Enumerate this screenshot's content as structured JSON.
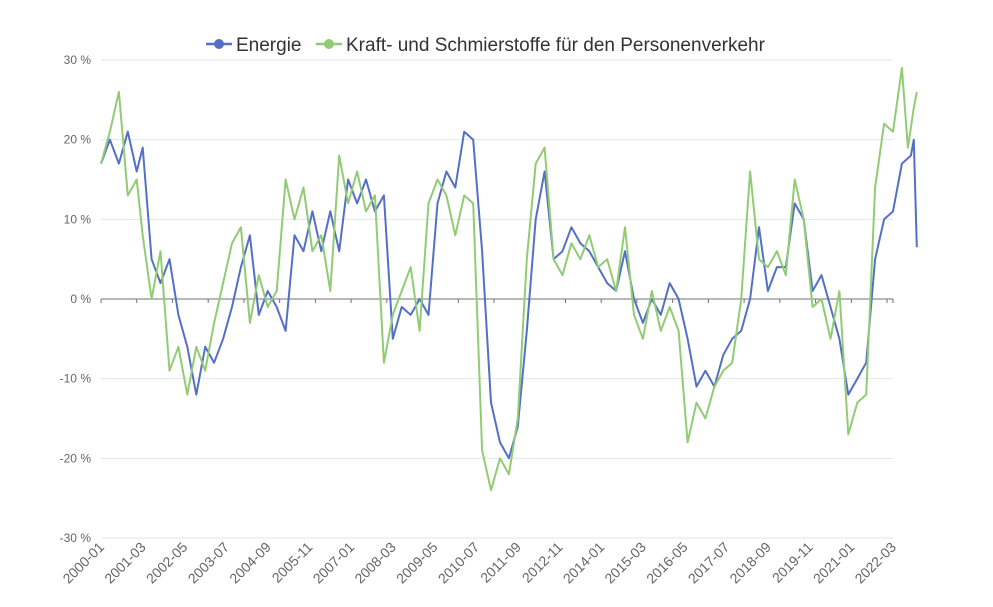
{
  "chart_data": {
    "type": "line",
    "legend_position": "top",
    "grid": true,
    "ylim": [
      -30,
      30
    ],
    "y_ticks": [
      30,
      20,
      10,
      0,
      -10,
      -20,
      -30
    ],
    "y_tick_labels": [
      "30 %",
      "20 %",
      "10 %",
      "0 %",
      "-10 %",
      "-20 %",
      "-30 %"
    ],
    "x_range": [
      "2000-01",
      "2022-03"
    ],
    "x_tick_labels": [
      "2000-01",
      "2001-03",
      "2002-05",
      "2003-07",
      "2004-09",
      "2005-11",
      "2007-01",
      "2008-03",
      "2009-05",
      "2010-07",
      "2011-09",
      "2012-11",
      "2014-01",
      "2015-03",
      "2016-05",
      "2017-07",
      "2018-09",
      "2019-11",
      "2021-01",
      "2022-03"
    ],
    "series": [
      {
        "name": "Energie",
        "color": "#5470c6",
        "points": [
          [
            "2000-01",
            17
          ],
          [
            "2000-04",
            20
          ],
          [
            "2000-07",
            17
          ],
          [
            "2000-10",
            21
          ],
          [
            "2001-01",
            16
          ],
          [
            "2001-03",
            19
          ],
          [
            "2001-06",
            5
          ],
          [
            "2001-09",
            2
          ],
          [
            "2001-12",
            5
          ],
          [
            "2002-03",
            -2
          ],
          [
            "2002-06",
            -6
          ],
          [
            "2002-09",
            -12
          ],
          [
            "2002-12",
            -6
          ],
          [
            "2003-03",
            -8
          ],
          [
            "2003-06",
            -5
          ],
          [
            "2003-09",
            -1
          ],
          [
            "2003-12",
            4
          ],
          [
            "2004-03",
            8
          ],
          [
            "2004-06",
            -2
          ],
          [
            "2004-09",
            1
          ],
          [
            "2004-12",
            -1
          ],
          [
            "2005-03",
            -4
          ],
          [
            "2005-06",
            8
          ],
          [
            "2005-09",
            6
          ],
          [
            "2005-12",
            11
          ],
          [
            "2006-03",
            6
          ],
          [
            "2006-06",
            11
          ],
          [
            "2006-09",
            6
          ],
          [
            "2006-12",
            15
          ],
          [
            "2007-03",
            12
          ],
          [
            "2007-06",
            15
          ],
          [
            "2007-09",
            11
          ],
          [
            "2007-12",
            13
          ],
          [
            "2008-03",
            -5
          ],
          [
            "2008-06",
            -1
          ],
          [
            "2008-09",
            -2
          ],
          [
            "2008-12",
            0
          ],
          [
            "2009-03",
            -2
          ],
          [
            "2009-06",
            12
          ],
          [
            "2009-09",
            16
          ],
          [
            "2009-12",
            14
          ],
          [
            "2010-03",
            21
          ],
          [
            "2010-06",
            20
          ],
          [
            "2010-09",
            6
          ],
          [
            "2010-12",
            -13
          ],
          [
            "2011-03",
            -18
          ],
          [
            "2011-06",
            -20
          ],
          [
            "2011-09",
            -16
          ],
          [
            "2011-12",
            -4
          ],
          [
            "2012-03",
            10
          ],
          [
            "2012-06",
            16
          ],
          [
            "2012-09",
            5
          ],
          [
            "2012-12",
            6
          ],
          [
            "2013-03",
            9
          ],
          [
            "2013-06",
            7
          ],
          [
            "2013-09",
            6
          ],
          [
            "2013-12",
            4
          ],
          [
            "2014-03",
            2
          ],
          [
            "2014-06",
            1
          ],
          [
            "2014-09",
            6
          ],
          [
            "2014-12",
            0
          ],
          [
            "2015-03",
            -3
          ],
          [
            "2015-06",
            0
          ],
          [
            "2015-09",
            -2
          ],
          [
            "2015-12",
            2
          ],
          [
            "2016-03",
            0
          ],
          [
            "2016-06",
            -5
          ],
          [
            "2016-09",
            -11
          ],
          [
            "2016-12",
            -9
          ],
          [
            "2017-03",
            -11
          ],
          [
            "2017-06",
            -7
          ],
          [
            "2017-09",
            -5
          ],
          [
            "2017-12",
            -4
          ],
          [
            "2018-03",
            0
          ],
          [
            "2018-06",
            9
          ],
          [
            "2018-09",
            1
          ],
          [
            "2018-12",
            4
          ],
          [
            "2019-03",
            4
          ],
          [
            "2019-06",
            12
          ],
          [
            "2019-09",
            10
          ],
          [
            "2019-12",
            1
          ],
          [
            "2020-03",
            3
          ],
          [
            "2020-06",
            -1
          ],
          [
            "2020-09",
            -5
          ],
          [
            "2020-12",
            -12
          ],
          [
            "2021-03",
            -10
          ],
          [
            "2021-06",
            -8
          ],
          [
            "2021-09",
            5
          ],
          [
            "2021-12",
            10
          ],
          [
            "2022-03",
            11
          ],
          [
            "2022-06",
            17
          ],
          [
            "2022-09",
            18
          ],
          [
            "2022-10",
            20
          ],
          [
            "2022-11",
            6.5
          ]
        ]
      },
      {
        "name": "Kraft- und Schmierstoffe für den Personenverkehr",
        "color": "#91cc75",
        "points": [
          [
            "2000-01",
            17
          ],
          [
            "2000-04",
            21
          ],
          [
            "2000-07",
            26
          ],
          [
            "2000-10",
            13
          ],
          [
            "2001-01",
            15
          ],
          [
            "2001-03",
            8
          ],
          [
            "2001-06",
            0
          ],
          [
            "2001-09",
            6
          ],
          [
            "2001-12",
            -9
          ],
          [
            "2002-03",
            -6
          ],
          [
            "2002-06",
            -12
          ],
          [
            "2002-09",
            -6
          ],
          [
            "2002-12",
            -9
          ],
          [
            "2003-03",
            -3
          ],
          [
            "2003-06",
            2
          ],
          [
            "2003-09",
            7
          ],
          [
            "2003-12",
            9
          ],
          [
            "2004-03",
            -3
          ],
          [
            "2004-06",
            3
          ],
          [
            "2004-09",
            -1
          ],
          [
            "2004-12",
            1
          ],
          [
            "2005-03",
            15
          ],
          [
            "2005-06",
            10
          ],
          [
            "2005-09",
            14
          ],
          [
            "2005-12",
            6
          ],
          [
            "2006-03",
            8
          ],
          [
            "2006-06",
            1
          ],
          [
            "2006-09",
            18
          ],
          [
            "2006-12",
            12
          ],
          [
            "2007-03",
            16
          ],
          [
            "2007-06",
            11
          ],
          [
            "2007-09",
            13
          ],
          [
            "2007-12",
            -8
          ],
          [
            "2008-03",
            -2
          ],
          [
            "2008-06",
            1
          ],
          [
            "2008-09",
            4
          ],
          [
            "2008-12",
            -4
          ],
          [
            "2009-03",
            12
          ],
          [
            "2009-06",
            15
          ],
          [
            "2009-09",
            13
          ],
          [
            "2009-12",
            8
          ],
          [
            "2010-03",
            13
          ],
          [
            "2010-06",
            12
          ],
          [
            "2010-09",
            -19
          ],
          [
            "2010-12",
            -24
          ],
          [
            "2011-03",
            -20
          ],
          [
            "2011-06",
            -22
          ],
          [
            "2011-09",
            -15
          ],
          [
            "2011-12",
            5
          ],
          [
            "2012-03",
            17
          ],
          [
            "2012-06",
            19
          ],
          [
            "2012-09",
            5
          ],
          [
            "2012-12",
            3
          ],
          [
            "2013-03",
            7
          ],
          [
            "2013-06",
            5
          ],
          [
            "2013-09",
            8
          ],
          [
            "2013-12",
            4
          ],
          [
            "2014-03",
            5
          ],
          [
            "2014-06",
            1
          ],
          [
            "2014-09",
            9
          ],
          [
            "2014-12",
            -2
          ],
          [
            "2015-03",
            -5
          ],
          [
            "2015-06",
            1
          ],
          [
            "2015-09",
            -4
          ],
          [
            "2015-12",
            -1
          ],
          [
            "2016-03",
            -4
          ],
          [
            "2016-06",
            -18
          ],
          [
            "2016-09",
            -13
          ],
          [
            "2016-12",
            -15
          ],
          [
            "2017-03",
            -11
          ],
          [
            "2017-06",
            -9
          ],
          [
            "2017-09",
            -8
          ],
          [
            "2017-12",
            0
          ],
          [
            "2018-03",
            16
          ],
          [
            "2018-06",
            5
          ],
          [
            "2018-09",
            4
          ],
          [
            "2018-12",
            6
          ],
          [
            "2019-03",
            3
          ],
          [
            "2019-06",
            15
          ],
          [
            "2019-09",
            10
          ],
          [
            "2019-12",
            -1
          ],
          [
            "2020-03",
            0
          ],
          [
            "2020-06",
            -5
          ],
          [
            "2020-09",
            1
          ],
          [
            "2020-12",
            -17
          ],
          [
            "2021-03",
            -13
          ],
          [
            "2021-06",
            -12
          ],
          [
            "2021-09",
            14
          ],
          [
            "2021-12",
            22
          ],
          [
            "2022-03",
            21
          ],
          [
            "2022-06",
            29
          ],
          [
            "2022-08",
            19
          ],
          [
            "2022-10",
            24
          ],
          [
            "2022-11",
            26
          ]
        ]
      }
    ]
  }
}
